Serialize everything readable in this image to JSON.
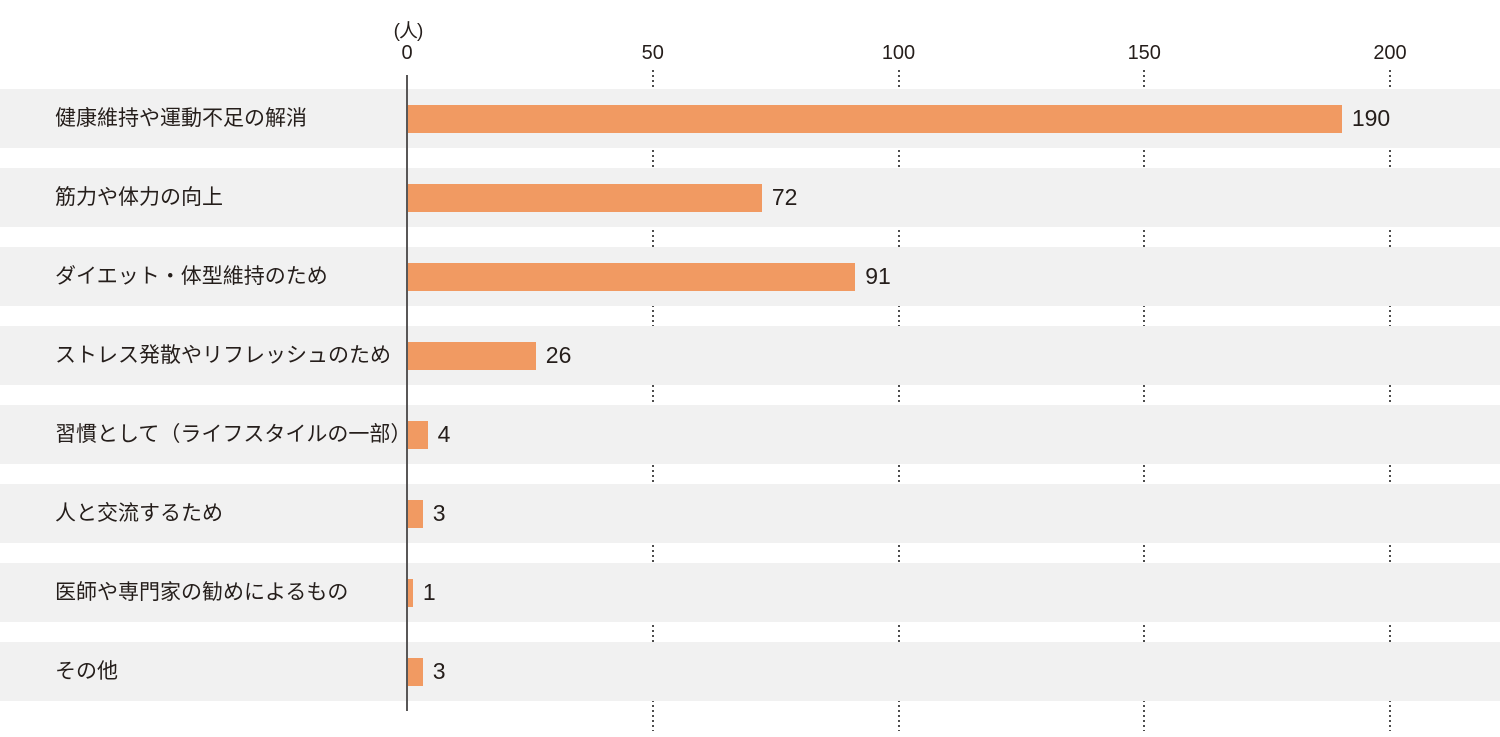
{
  "chart_data": {
    "type": "bar",
    "orientation": "horizontal",
    "title": "",
    "xlabel": "",
    "ylabel": "",
    "unit_label": "(人)",
    "x_ticks": [
      0,
      50,
      100,
      150,
      200
    ],
    "xlim": [
      0,
      215
    ],
    "grid": "vertical dotted lines at x ticks, visible in white gaps between row bands",
    "legend": "none",
    "categories": [
      "健康維持や運動不足の解消",
      "筋力や体力の向上",
      "ダイエット・体型維持のため",
      "ストレス発散やリフレッシュのため",
      "習慣として（ライフスタイルの一部）",
      "人と交流するため",
      "医師や専門家の勧めによるもの",
      "その他"
    ],
    "values": [
      190,
      72,
      91,
      26,
      4,
      3,
      1,
      3
    ],
    "colors": {
      "bar": "#F19A62",
      "row_band": "#F1F1F1",
      "axis_line": "#595757",
      "grid_dots": "#4D4D4D",
      "text": "#251E1B",
      "background": "#FFFFFF"
    }
  }
}
